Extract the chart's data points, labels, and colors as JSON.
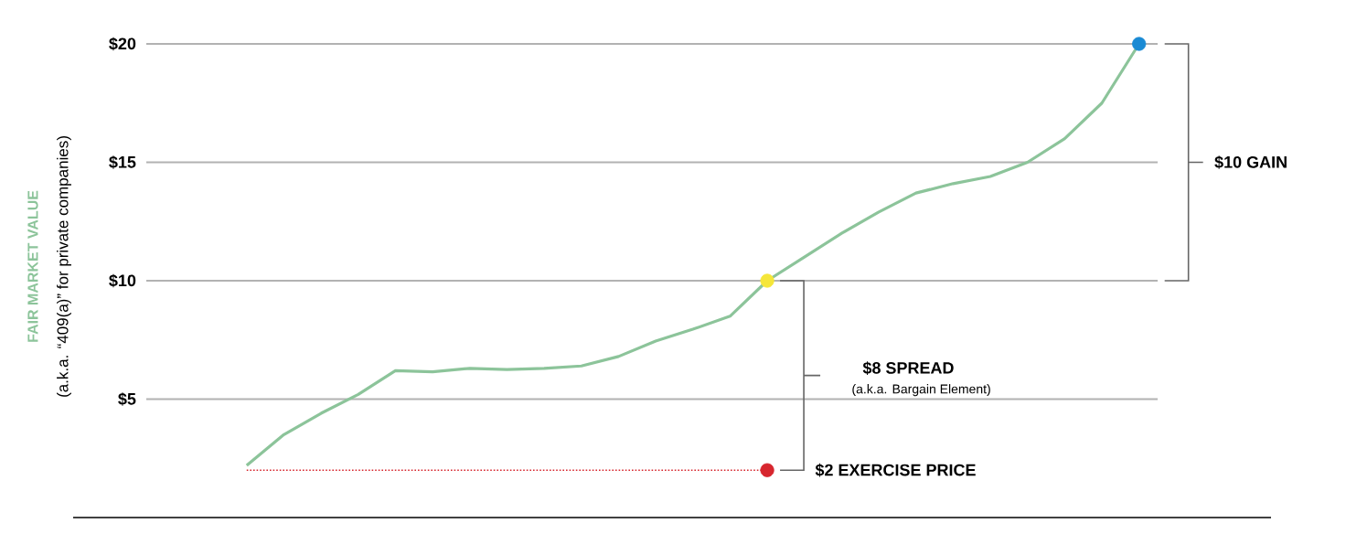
{
  "chart_data": {
    "type": "line",
    "ylabel": "FAIR MARKET VALUE",
    "categories": [
      null,
      null,
      null,
      null,
      null,
      null,
      null,
      null,
      null,
      null,
      null,
      null,
      null,
      null,
      null,
      null,
      null,
      null,
      null,
      null,
      null,
      null,
      null,
      null,
      null
    ],
    "series": [
      {
        "type": "line",
        "color": "#8cc49a",
        "marker": "none",
        "line_style": "solid",
        "values": [
          2.2,
          3.5,
          4.4,
          5.2,
          6.2,
          6.15,
          6.3,
          6.25,
          6.3,
          6.4,
          6.8,
          7.45,
          7.95,
          8.5,
          10,
          11.0,
          12.0,
          12.9,
          13.7,
          14.1,
          14.4,
          15.0,
          16.0,
          17.5,
          20
        ]
      },
      {
        "type": "line",
        "color": "#d7262e",
        "marker": "none",
        "line_style": "dotted",
        "values": [
          2,
          2,
          2,
          2,
          2,
          2,
          2,
          2,
          2,
          2,
          2,
          2,
          2,
          2,
          2,
          null,
          null,
          null,
          null,
          null,
          null,
          null,
          null,
          null,
          null
        ]
      },
      {
        "type": "scatter",
        "color": "#d7262e",
        "marker": "circle",
        "values": [
          null,
          null,
          null,
          null,
          null,
          null,
          null,
          null,
          null,
          null,
          null,
          null,
          null,
          null,
          2,
          null,
          null,
          null,
          null,
          null,
          null,
          null,
          null,
          null,
          null
        ]
      },
      {
        "type": "scatter",
        "color": "#f5e63a",
        "marker": "circle",
        "values": [
          null,
          null,
          null,
          null,
          null,
          null,
          null,
          null,
          null,
          null,
          null,
          null,
          null,
          null,
          10,
          null,
          null,
          null,
          null,
          null,
          null,
          null,
          null,
          null,
          null
        ]
      },
      {
        "type": "scatter",
        "color": "#1a8ad4",
        "marker": "circle",
        "values": [
          null,
          null,
          null,
          null,
          null,
          null,
          null,
          null,
          null,
          null,
          null,
          null,
          null,
          null,
          null,
          null,
          null,
          null,
          null,
          null,
          null,
          null,
          null,
          null,
          20
        ]
      }
    ],
    "ylim": [
      0,
      20
    ],
    "yticks": [
      {
        "value": 5,
        "label": "$5"
      },
      {
        "value": 10,
        "label": "$10"
      },
      {
        "value": 15,
        "label": "$15"
      },
      {
        "value": 20,
        "label": "$20"
      }
    ],
    "grid": "y",
    "tick_labels": "y",
    "annotations": [
      "$10 GAIN",
      "$8 SPREAD",
      "(a.k.a. Bargain Element)",
      "$2 EXERCISE PRICE",
      "(a.k.a. “409(a)” for private companies)"
    ]
  }
}
